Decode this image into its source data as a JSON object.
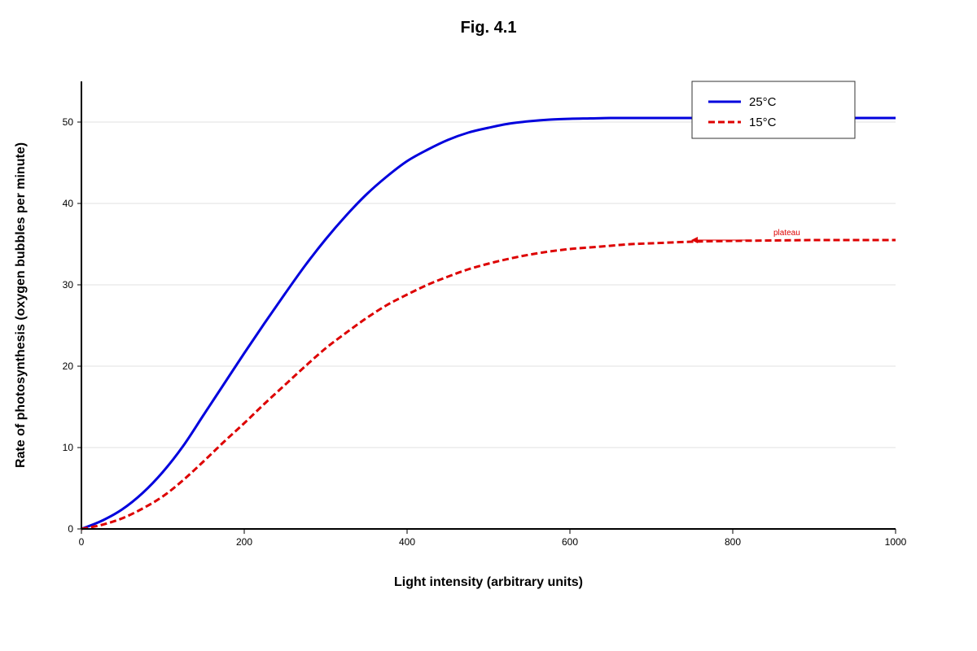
{
  "chart_data": {
    "type": "line",
    "title": "Fig. 4.1",
    "xlabel": "Light intensity (arbitrary units)",
    "ylabel": "Rate of photosynthesis (oxygen bubbles per minute)",
    "xlim": [
      0,
      1000
    ],
    "ylim": [
      0,
      55
    ],
    "xticks": [
      0,
      200,
      400,
      600,
      800,
      1000
    ],
    "yticks": [
      0,
      10,
      20,
      30,
      40,
      50
    ],
    "grid": "horizontal",
    "legend_position": "top-right",
    "series": [
      {
        "name": "25°C",
        "color": "#0000dd",
        "dash": "solid",
        "x": [
          0,
          25,
          50,
          75,
          100,
          125,
          150,
          175,
          200,
          225,
          250,
          275,
          300,
          325,
          350,
          375,
          400,
          425,
          450,
          475,
          500,
          525,
          550,
          575,
          600,
          625,
          650,
          675,
          700,
          750,
          800,
          850,
          900,
          950,
          1000
        ],
        "y": [
          0,
          1.0,
          2.4,
          4.4,
          7.0,
          10.2,
          14.0,
          17.8,
          21.6,
          25.3,
          28.9,
          32.4,
          35.6,
          38.5,
          41.1,
          43.3,
          45.2,
          46.6,
          47.8,
          48.7,
          49.3,
          49.8,
          50.1,
          50.3,
          50.4,
          50.45,
          50.5,
          50.5,
          50.5,
          50.5,
          50.5,
          50.5,
          50.5,
          50.5,
          50.5
        ]
      },
      {
        "name": "15°C",
        "color": "#dd0000",
        "dash": "dashed",
        "x": [
          0,
          25,
          50,
          75,
          100,
          125,
          150,
          175,
          200,
          225,
          250,
          275,
          300,
          325,
          350,
          375,
          400,
          425,
          450,
          475,
          500,
          525,
          550,
          575,
          600,
          625,
          650,
          675,
          700,
          750,
          800,
          850,
          900,
          950,
          1000
        ],
        "y": [
          0,
          0.5,
          1.3,
          2.5,
          4.0,
          6.0,
          8.3,
          10.7,
          13.0,
          15.4,
          17.7,
          20.0,
          22.2,
          24.1,
          25.9,
          27.5,
          28.8,
          30.0,
          31.0,
          31.9,
          32.6,
          33.2,
          33.7,
          34.1,
          34.4,
          34.6,
          34.8,
          35.0,
          35.1,
          35.3,
          35.4,
          35.45,
          35.5,
          35.5,
          35.5
        ]
      }
    ],
    "annotations": [
      {
        "text": "plateau",
        "color": "#0000dd",
        "arrow_to": [
          750,
          50.5
        ]
      },
      {
        "text": "plateau",
        "color": "#dd0000",
        "arrow_to": [
          750,
          35.5
        ]
      }
    ]
  }
}
